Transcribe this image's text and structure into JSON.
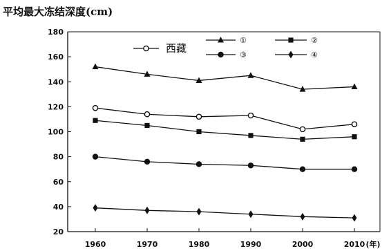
{
  "chart_data": {
    "type": "line",
    "title": "平均最大冻结深度(cm)",
    "xlabel": "(年)",
    "ylabel": "",
    "x": [
      1960,
      1970,
      1980,
      1990,
      2000,
      2010
    ],
    "ylim": [
      20,
      180
    ],
    "yticks": [
      20,
      40,
      60,
      80,
      100,
      120,
      140,
      160,
      180
    ],
    "grid": false,
    "legend_position": "top",
    "series": [
      {
        "name": "西藏",
        "marker": "circle-open",
        "values": [
          119,
          114,
          112,
          113,
          102,
          106
        ]
      },
      {
        "name": "①",
        "marker": "triangle",
        "values": [
          152,
          146,
          141,
          145,
          134,
          136
        ]
      },
      {
        "name": "②",
        "marker": "square",
        "values": [
          109,
          105,
          100,
          97,
          94,
          96
        ]
      },
      {
        "name": "③",
        "marker": "circle-filled",
        "values": [
          80,
          76,
          74,
          73,
          70,
          70
        ]
      },
      {
        "name": "④",
        "marker": "diamond",
        "values": [
          39,
          37,
          36,
          34,
          32,
          31
        ]
      }
    ]
  }
}
